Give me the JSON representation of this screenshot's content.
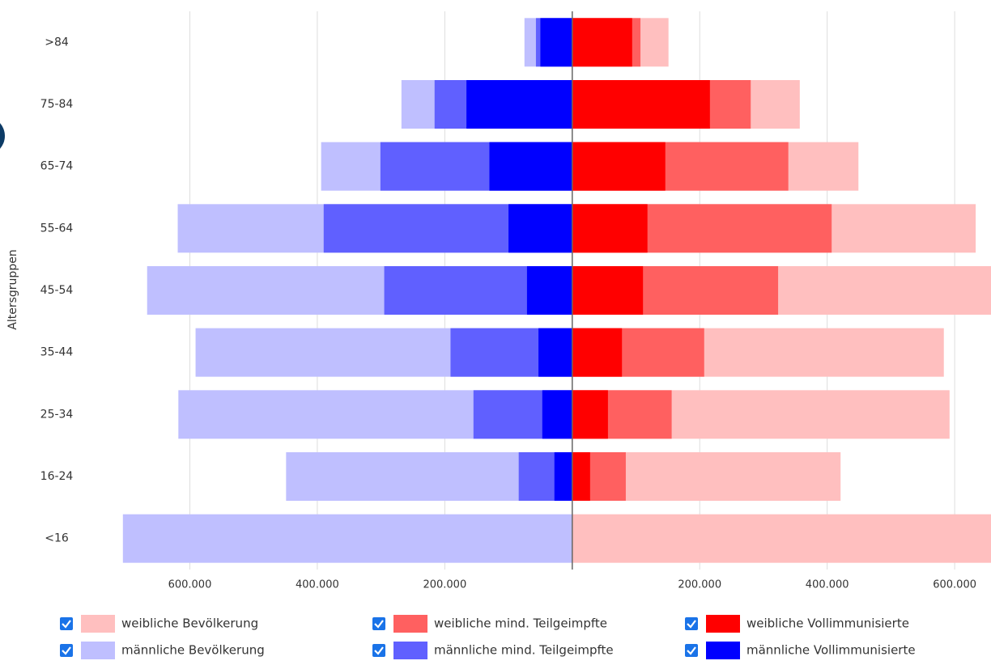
{
  "chart_data": {
    "type": "pyramid",
    "y_axis_label": "Altersgruppen",
    "categories": [
      ">84",
      "75-84",
      "65-74",
      "55-64",
      "45-54",
      "35-44",
      "25-34",
      "16-24",
      "<16"
    ],
    "series": [
      {
        "name": "weibliche Bevölkerung",
        "color": "#ffbfbf",
        "values": [
          151000,
          357000,
          449000,
          633000,
          680000,
          583000,
          592000,
          421000,
          700000
        ]
      },
      {
        "name": "weibliche mind. Teilgeimpfte",
        "color": "#ff6060",
        "values": [
          107000,
          280000,
          339000,
          407000,
          323000,
          207000,
          156000,
          84000,
          0
        ]
      },
      {
        "name": "weibliche Vollimmunisierte",
        "color": "#ff0000",
        "values": [
          94000,
          216000,
          146000,
          118000,
          111000,
          78000,
          56000,
          28000,
          0
        ]
      },
      {
        "name": "männliche Bevölkerung",
        "color": "#bfbfff",
        "values": [
          -75000,
          -268000,
          -394000,
          -619000,
          -667000,
          -591000,
          -618000,
          -449000,
          -705000
        ]
      },
      {
        "name": "männliche mind. Teilgeimpfte",
        "color": "#6060ff",
        "values": [
          -57000,
          -216000,
          -301000,
          -390000,
          -295000,
          -191000,
          -155000,
          -84000,
          0
        ]
      },
      {
        "name": "männliche Vollimmunisierte",
        "color": "#0000ff",
        "values": [
          -50000,
          -166000,
          -130000,
          -100000,
          -71000,
          -53000,
          -47000,
          -28000,
          0
        ]
      }
    ],
    "xlim": [
      -720000,
      657000
    ],
    "xticks": [
      {
        "value": -600000,
        "label": "600.000"
      },
      {
        "value": -400000,
        "label": "400.000"
      },
      {
        "value": -200000,
        "label": "200.000"
      },
      {
        "value": 200000,
        "label": "200.000"
      },
      {
        "value": 400000,
        "label": "400.000"
      },
      {
        "value": 600000,
        "label": "600.000"
      }
    ],
    "grid": true
  }
}
